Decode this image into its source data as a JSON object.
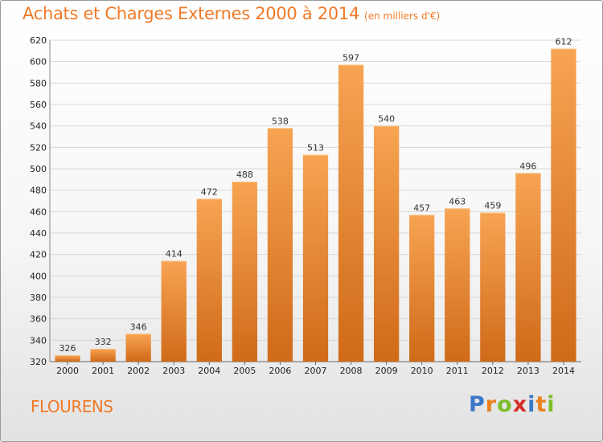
{
  "header": {
    "title": "Achats et Charges Externes 2000 à 2014",
    "subtitle": "(en milliers d'€)"
  },
  "footer": {
    "town": "FLOURENS",
    "logo_letters": [
      "P",
      "r",
      "o",
      "x",
      "i",
      "t",
      "i"
    ]
  },
  "colors": {
    "accent": "#f07a28",
    "bar_top": "#f7a453",
    "bar_bottom": "#cf6a18",
    "grid": "#d8d8d8"
  },
  "chart_data": {
    "type": "bar",
    "title": "Achats et Charges Externes 2000 à 2014",
    "subtitle": "(en milliers d'€)",
    "categories": [
      "2000",
      "2001",
      "2002",
      "2003",
      "2004",
      "2005",
      "2006",
      "2007",
      "2008",
      "2009",
      "2010",
      "2011",
      "2012",
      "2013",
      "2014"
    ],
    "values": [
      326,
      332,
      346,
      414,
      472,
      488,
      538,
      513,
      597,
      540,
      457,
      463,
      459,
      496,
      612
    ],
    "ylim": [
      320,
      620
    ],
    "yticks": [
      320,
      340,
      360,
      380,
      400,
      420,
      440,
      460,
      480,
      500,
      520,
      540,
      560,
      580,
      600,
      620
    ],
    "grid": true,
    "xlabel": "",
    "ylabel": ""
  }
}
